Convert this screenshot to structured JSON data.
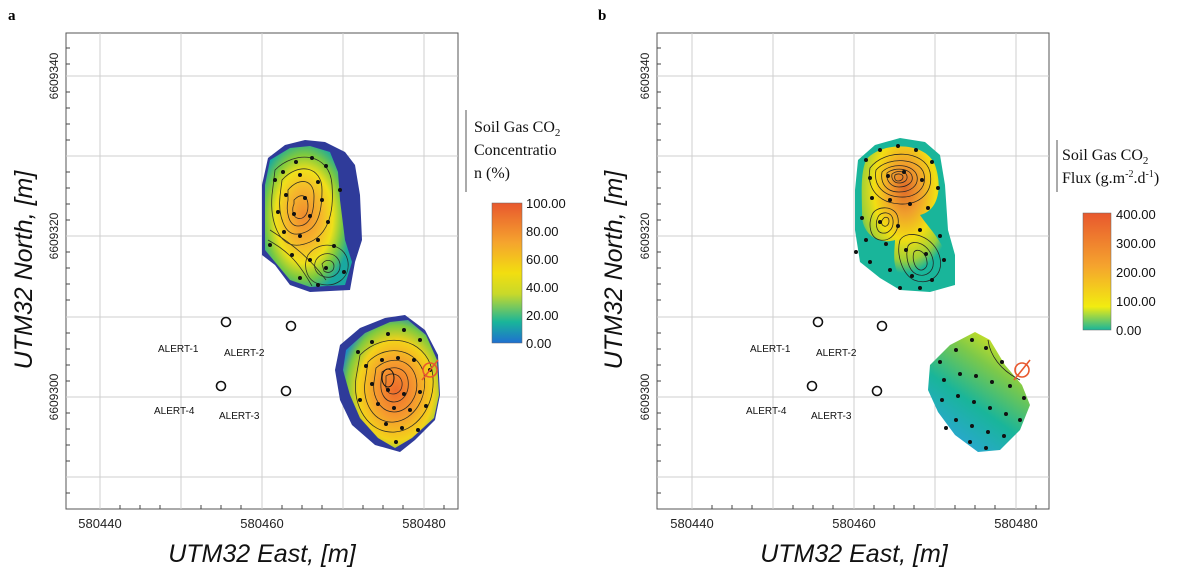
{
  "chart_data": [
    {
      "type": "heatmap",
      "panel_label": "a",
      "xlabel": "UTM32 East, [m]",
      "ylabel": "UTM32 North, [m]",
      "x_ticks": [
        "580440",
        "580460",
        "580480"
      ],
      "x_tick_values": [
        580440,
        580460,
        580480
      ],
      "y_ticks": [
        "6609300",
        "6609320",
        "6609340"
      ],
      "y_tick_values": [
        6609300,
        6609320,
        6609340
      ],
      "xlim": [
        580432,
        580486
      ],
      "ylim": [
        6609292,
        6609346
      ],
      "grid": true,
      "legend": {
        "title_lines": [
          "Soil Gas CO₂",
          "Concentratio",
          "n (%)"
        ],
        "colorbar_ticks": [
          "100.00",
          "80.00",
          "60.00",
          "40.00",
          "20.00",
          "0.00"
        ],
        "colorbar_values": [
          100,
          80,
          60,
          40,
          20,
          0
        ],
        "colors": [
          "#1f6fd1",
          "#19b59a",
          "#c8d92a",
          "#f2de10",
          "#f5a32e",
          "#e8582e"
        ]
      },
      "wells": [
        {
          "name": "ALERT-1",
          "x": 580455,
          "y": 6609310
        },
        {
          "name": "ALERT-2",
          "x": 580463,
          "y": 6609310
        },
        {
          "name": "ALERT-4",
          "x": 580455,
          "y": 6609303
        },
        {
          "name": "ALERT-3",
          "x": 580463,
          "y": 6609303
        }
      ],
      "marker_color": "#e8582e"
    },
    {
      "type": "heatmap",
      "panel_label": "b",
      "xlabel": "UTM32 East, [m]",
      "ylabel": "UTM32 North, [m]",
      "x_ticks": [
        "580440",
        "580460",
        "580480"
      ],
      "x_tick_values": [
        580440,
        580460,
        580480
      ],
      "y_ticks": [
        "6609300",
        "6609320",
        "6609340"
      ],
      "y_tick_values": [
        6609300,
        6609320,
        6609340
      ],
      "xlim": [
        580432,
        580486
      ],
      "ylim": [
        6609292,
        6609346
      ],
      "grid": true,
      "legend": {
        "title_lines": [
          "Soil Gas CO₂",
          "Flux (g.m⁻².d⁻¹)"
        ],
        "colorbar_ticks": [
          "400.00",
          "300.00",
          "200.00",
          "100.00",
          "0.00"
        ],
        "colorbar_values": [
          400,
          300,
          200,
          100,
          0
        ],
        "colors": [
          "#19b59a",
          "#f2ec10",
          "#f5a32e",
          "#e8582e"
        ]
      },
      "wells": [
        {
          "name": "ALERT-1",
          "x": 580455,
          "y": 6609310
        },
        {
          "name": "ALERT-2",
          "x": 580463,
          "y": 6609310
        },
        {
          "name": "ALERT-4",
          "x": 580455,
          "y": 6609303
        },
        {
          "name": "ALERT-3",
          "x": 580463,
          "y": 6609303
        }
      ],
      "marker_color": "#e8582e"
    }
  ]
}
